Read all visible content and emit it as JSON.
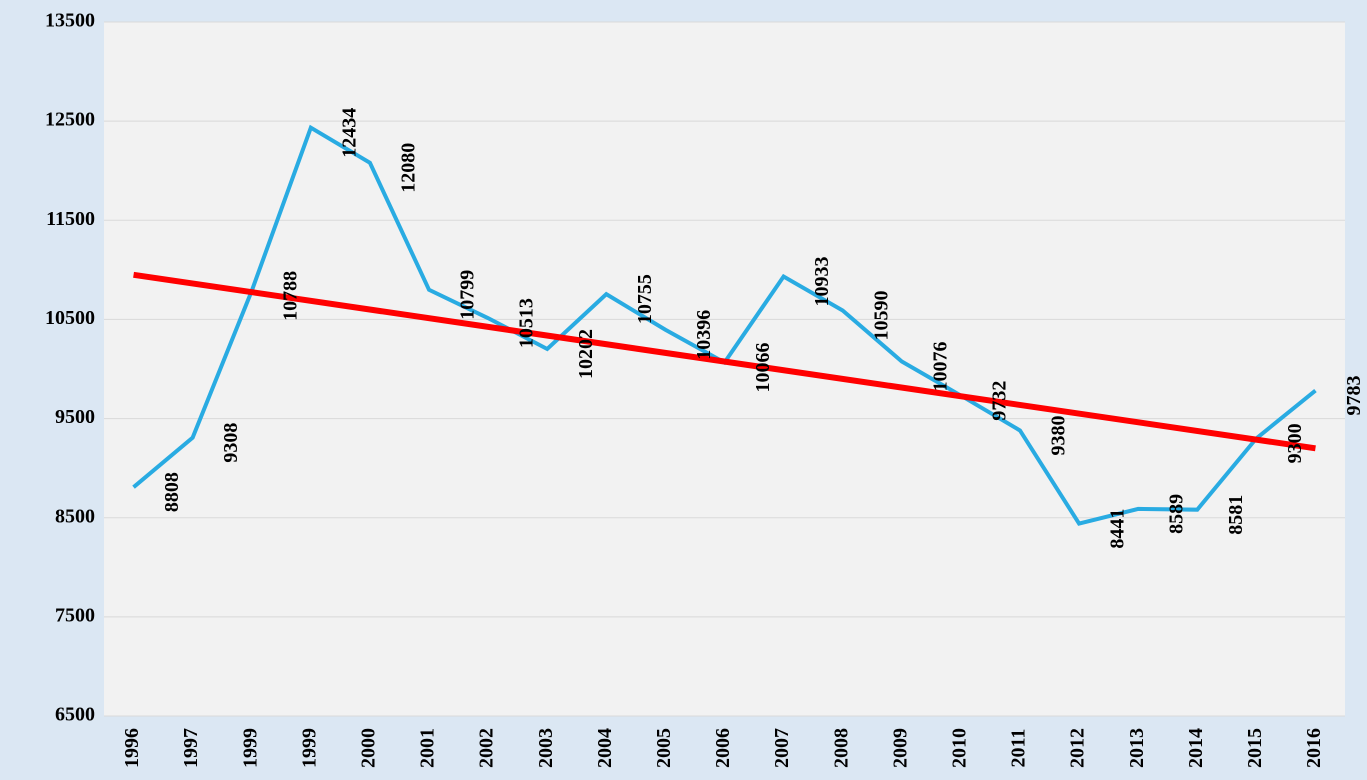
{
  "chart_data": {
    "type": "line",
    "categories": [
      "1996",
      "1997",
      "1999",
      "1999",
      "2000",
      "2001",
      "2002",
      "2003",
      "2004",
      "2005",
      "2006",
      "2007",
      "2008",
      "2009",
      "2010",
      "2011",
      "2012",
      "2013",
      "2014",
      "2015",
      "2016"
    ],
    "series": [
      {
        "color": "#29abe2",
        "values": [
          8808,
          9308,
          10788,
          12434,
          12080,
          10799,
          10513,
          10202,
          10755,
          10396,
          10066,
          10933,
          10590,
          10076,
          9732,
          9380,
          8441,
          8589,
          8581,
          9300,
          9783
        ]
      }
    ],
    "trend": {
      "color": "#ff0000",
      "values": [
        10950,
        9200
      ]
    },
    "ylim": [
      6500,
      13500
    ],
    "yticks": [
      6500,
      7500,
      8500,
      9500,
      10500,
      11500,
      12500,
      13500
    ],
    "grid": true
  }
}
